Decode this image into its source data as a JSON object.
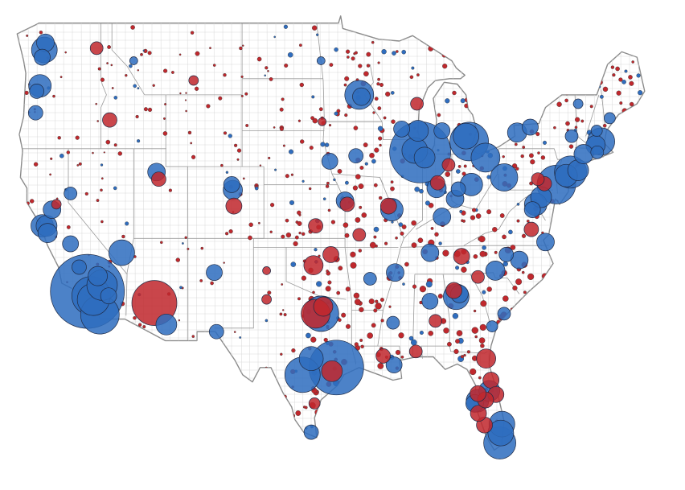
{
  "colors": {
    "party_a": "#2f6dbf",
    "party_b": "#c0282d",
    "outline": "#8a8a8a",
    "county_grid": "#d9d9d9"
  },
  "legend": null,
  "bubbles": [
    {
      "id": "la",
      "lon": -118.25,
      "lat": 34.05,
      "r": 46,
      "party": "a"
    },
    {
      "id": "la2",
      "lon": -117.9,
      "lat": 33.8,
      "r": 24,
      "party": "a"
    },
    {
      "id": "la3",
      "lon": -117.7,
      "lat": 33.6,
      "r": 20,
      "party": "a"
    },
    {
      "id": "sd",
      "lon": -117.1,
      "lat": 32.75,
      "r": 24,
      "party": "a"
    },
    {
      "id": "sb",
      "lon": -116.9,
      "lat": 34.4,
      "r": 19,
      "party": "a"
    },
    {
      "id": "sb2",
      "lon": -117.3,
      "lat": 34.9,
      "r": 12,
      "party": "a"
    },
    {
      "id": "riv",
      "lon": -116.3,
      "lat": 33.8,
      "r": 10,
      "party": "a"
    },
    {
      "id": "sf",
      "lon": -122.4,
      "lat": 37.7,
      "r": 14,
      "party": "a"
    },
    {
      "id": "alam",
      "lon": -122.0,
      "lat": 37.7,
      "r": 13,
      "party": "a"
    },
    {
      "id": "sc",
      "lon": -121.9,
      "lat": 37.3,
      "r": 12,
      "party": "a"
    },
    {
      "id": "sac",
      "lon": -121.5,
      "lat": 38.6,
      "r": 11,
      "party": "a"
    },
    {
      "id": "fres",
      "lon": -119.8,
      "lat": 36.7,
      "r": 10,
      "party": "a"
    },
    {
      "id": "kern",
      "lon": -119.0,
      "lat": 35.4,
      "r": 9,
      "party": "a"
    },
    {
      "id": "ca_r",
      "lon": -121.1,
      "lat": 38.9,
      "r": 6,
      "party": "b"
    },
    {
      "id": "sea",
      "lon": -122.2,
      "lat": 47.5,
      "r": 16,
      "party": "a"
    },
    {
      "id": "sea2",
      "lon": -122.1,
      "lat": 47.9,
      "r": 11,
      "party": "a"
    },
    {
      "id": "tac",
      "lon": -122.4,
      "lat": 47.1,
      "r": 10,
      "party": "a"
    },
    {
      "id": "spok",
      "lon": -117.4,
      "lat": 47.6,
      "r": 8,
      "party": "b"
    },
    {
      "id": "pdx",
      "lon": -122.6,
      "lat": 45.5,
      "r": 14,
      "party": "a"
    },
    {
      "id": "pdx2",
      "lon": -122.9,
      "lat": 45.2,
      "r": 9,
      "party": "a"
    },
    {
      "id": "eug",
      "lon": -123.0,
      "lat": 44.0,
      "r": 9,
      "party": "a"
    },
    {
      "id": "boise",
      "lon": -116.2,
      "lat": 43.6,
      "r": 9,
      "party": "b"
    },
    {
      "id": "phx",
      "lon": -112.1,
      "lat": 33.4,
      "r": 28,
      "party": "b"
    },
    {
      "id": "tuc",
      "lon": -111.0,
      "lat": 32.2,
      "r": 13,
      "party": "a"
    },
    {
      "id": "lv",
      "lon": -115.1,
      "lat": 36.2,
      "r": 16,
      "party": "a"
    },
    {
      "id": "reno",
      "lon": -119.8,
      "lat": 39.5,
      "r": 8,
      "party": "a"
    },
    {
      "id": "slc",
      "lon": -111.9,
      "lat": 40.7,
      "r": 11,
      "party": "a"
    },
    {
      "id": "utah",
      "lon": -111.7,
      "lat": 40.3,
      "r": 9,
      "party": "b"
    },
    {
      "id": "den",
      "lon": -104.9,
      "lat": 39.7,
      "r": 12,
      "party": "a"
    },
    {
      "id": "den2",
      "lon": -105.0,
      "lat": 40.0,
      "r": 10,
      "party": "a"
    },
    {
      "id": "cos",
      "lon": -104.8,
      "lat": 38.8,
      "r": 10,
      "party": "b"
    },
    {
      "id": "abq",
      "lon": -106.6,
      "lat": 35.1,
      "r": 10,
      "party": "a"
    },
    {
      "id": "elp",
      "lon": -106.4,
      "lat": 31.8,
      "r": 9,
      "party": "a"
    },
    {
      "id": "hou",
      "lon": -95.4,
      "lat": 29.8,
      "r": 34,
      "party": "a"
    },
    {
      "id": "hou2",
      "lon": -95.8,
      "lat": 29.6,
      "r": 13,
      "party": "b"
    },
    {
      "id": "dal",
      "lon": -96.8,
      "lat": 32.8,
      "r": 22,
      "party": "a"
    },
    {
      "id": "ftw",
      "lon": -97.3,
      "lat": 32.8,
      "r": 18,
      "party": "b"
    },
    {
      "id": "colin",
      "lon": -96.6,
      "lat": 33.2,
      "r": 12,
      "party": "b"
    },
    {
      "id": "aus",
      "lon": -97.7,
      "lat": 30.3,
      "r": 15,
      "party": "a"
    },
    {
      "id": "sa",
      "lon": -98.5,
      "lat": 29.4,
      "r": 22,
      "party": "a"
    },
    {
      "id": "rgv",
      "lon": -97.7,
      "lat": 26.2,
      "r": 9,
      "party": "a"
    },
    {
      "id": "okc",
      "lon": -97.5,
      "lat": 35.5,
      "r": 12,
      "party": "b"
    },
    {
      "id": "tul",
      "lon": -95.9,
      "lat": 36.1,
      "r": 10,
      "party": "b"
    },
    {
      "id": "kc",
      "lon": -94.6,
      "lat": 39.1,
      "r": 11,
      "party": "a"
    },
    {
      "id": "kc2",
      "lon": -94.4,
      "lat": 38.9,
      "r": 9,
      "party": "b"
    },
    {
      "id": "wich",
      "lon": -97.3,
      "lat": 37.7,
      "r": 9,
      "party": "b"
    },
    {
      "id": "oma",
      "lon": -96.0,
      "lat": 41.3,
      "r": 10,
      "party": "a"
    },
    {
      "id": "stl",
      "lon": -90.3,
      "lat": 38.6,
      "r": 14,
      "party": "a"
    },
    {
      "id": "stl2",
      "lon": -90.6,
      "lat": 38.8,
      "r": 10,
      "party": "b"
    },
    {
      "id": "msp",
      "lon": -93.3,
      "lat": 45.0,
      "r": 18,
      "party": "a"
    },
    {
      "id": "msp2",
      "lon": -93.1,
      "lat": 44.9,
      "r": 11,
      "party": "a"
    },
    {
      "id": "mke",
      "lon": -87.9,
      "lat": 43.0,
      "r": 13,
      "party": "a"
    },
    {
      "id": "mad",
      "lon": -89.4,
      "lat": 43.1,
      "r": 10,
      "party": "a"
    },
    {
      "id": "chi",
      "lon": -87.7,
      "lat": 41.8,
      "r": 38,
      "party": "a"
    },
    {
      "id": "chi2",
      "lon": -88.2,
      "lat": 41.9,
      "r": 16,
      "party": "a"
    },
    {
      "id": "chi3",
      "lon": -87.3,
      "lat": 41.5,
      "r": 13,
      "party": "a"
    },
    {
      "id": "det",
      "lon": -83.2,
      "lat": 42.4,
      "r": 24,
      "party": "a"
    },
    {
      "id": "det2",
      "lon": -83.5,
      "lat": 42.7,
      "r": 16,
      "party": "a"
    },
    {
      "id": "grr",
      "lon": -85.7,
      "lat": 43.0,
      "r": 10,
      "party": "a"
    },
    {
      "id": "cle",
      "lon": -81.7,
      "lat": 41.5,
      "r": 18,
      "party": "a"
    },
    {
      "id": "col",
      "lon": -83.0,
      "lat": 40.0,
      "r": 14,
      "party": "a"
    },
    {
      "id": "cin",
      "lon": -84.5,
      "lat": 39.2,
      "r": 11,
      "party": "a"
    },
    {
      "id": "ind",
      "lon": -86.2,
      "lat": 39.8,
      "r": 12,
      "party": "a"
    },
    {
      "id": "pit",
      "lon": -80.0,
      "lat": 40.4,
      "r": 17,
      "party": "a"
    },
    {
      "id": "phl",
      "lon": -75.2,
      "lat": 40.0,
      "r": 24,
      "party": "a"
    },
    {
      "id": "nyc",
      "lon": -73.9,
      "lat": 40.7,
      "r": 20,
      "party": "a"
    },
    {
      "id": "nj",
      "lon": -74.3,
      "lat": 40.5,
      "r": 14,
      "party": "a"
    },
    {
      "id": "li",
      "lon": -73.2,
      "lat": 40.8,
      "r": 13,
      "party": "a"
    },
    {
      "id": "bos",
      "lon": -71.1,
      "lat": 42.4,
      "r": 17,
      "party": "a"
    },
    {
      "id": "bos2",
      "lon": -71.6,
      "lat": 42.2,
      "r": 12,
      "party": "a"
    },
    {
      "id": "ct",
      "lon": -72.7,
      "lat": 41.7,
      "r": 12,
      "party": "a"
    },
    {
      "id": "buf",
      "lon": -78.8,
      "lat": 42.9,
      "r": 12,
      "party": "a"
    },
    {
      "id": "roc",
      "lon": -77.6,
      "lat": 43.2,
      "r": 10,
      "party": "a"
    },
    {
      "id": "alb",
      "lon": -73.8,
      "lat": 42.7,
      "r": 8,
      "party": "a"
    },
    {
      "id": "bal",
      "lon": -76.6,
      "lat": 39.3,
      "r": 13,
      "party": "a"
    },
    {
      "id": "dc",
      "lon": -77.1,
      "lat": 38.9,
      "r": 14,
      "party": "a"
    },
    {
      "id": "dc2",
      "lon": -77.4,
      "lat": 38.6,
      "r": 10,
      "party": "a"
    },
    {
      "id": "rich",
      "lon": -77.5,
      "lat": 37.5,
      "r": 9,
      "party": "b"
    },
    {
      "id": "nor",
      "lon": -76.2,
      "lat": 36.8,
      "r": 11,
      "party": "a"
    },
    {
      "id": "ral",
      "lon": -78.6,
      "lat": 35.8,
      "r": 11,
      "party": "a"
    },
    {
      "id": "clt",
      "lon": -80.8,
      "lat": 35.2,
      "r": 12,
      "party": "a"
    },
    {
      "id": "gsb",
      "lon": -79.8,
      "lat": 36.1,
      "r": 9,
      "party": "a"
    },
    {
      "id": "atl",
      "lon": -84.4,
      "lat": 33.75,
      "r": 16,
      "party": "a"
    },
    {
      "id": "atl2",
      "lon": -84.1,
      "lat": 33.9,
      "r": 11,
      "party": "a"
    },
    {
      "id": "atl3",
      "lon": -84.6,
      "lat": 34.1,
      "r": 10,
      "party": "b"
    },
    {
      "id": "nash",
      "lon": -86.8,
      "lat": 36.2,
      "r": 11,
      "party": "a"
    },
    {
      "id": "mem",
      "lon": -90.0,
      "lat": 35.1,
      "r": 11,
      "party": "a"
    },
    {
      "id": "knx",
      "lon": -83.9,
      "lat": 36.0,
      "r": 10,
      "party": "b"
    },
    {
      "id": "lou",
      "lon": -85.7,
      "lat": 38.2,
      "r": 11,
      "party": "a"
    },
    {
      "id": "bhm",
      "lon": -86.8,
      "lat": 33.5,
      "r": 10,
      "party": "a"
    },
    {
      "id": "no",
      "lon": -90.1,
      "lat": 29.95,
      "r": 10,
      "party": "a"
    },
    {
      "id": "br",
      "lon": -91.1,
      "lat": 30.45,
      "r": 9,
      "party": "b"
    },
    {
      "id": "jax",
      "lon": -81.65,
      "lat": 30.3,
      "r": 12,
      "party": "b"
    },
    {
      "id": "orl",
      "lon": -81.35,
      "lat": 28.5,
      "r": 13,
      "party": "a"
    },
    {
      "id": "tpa",
      "lon": -82.45,
      "lat": 27.95,
      "r": 14,
      "party": "a"
    },
    {
      "id": "stp",
      "lon": -82.7,
      "lat": 27.8,
      "r": 11,
      "party": "a"
    },
    {
      "id": "ftm",
      "lon": -81.8,
      "lat": 26.6,
      "r": 10,
      "party": "b"
    },
    {
      "id": "pb",
      "lon": -80.2,
      "lat": 26.65,
      "r": 16,
      "party": "a"
    },
    {
      "id": "brow",
      "lon": -80.3,
      "lat": 26.15,
      "r": 16,
      "party": "a"
    },
    {
      "id": "mia",
      "lon": -80.4,
      "lat": 25.6,
      "r": 20,
      "party": "a"
    },
    {
      "id": "volu",
      "lon": -81.2,
      "lat": 29.1,
      "r": 10,
      "party": "b"
    },
    {
      "id": "brev",
      "lon": -80.75,
      "lat": 28.3,
      "r": 10,
      "party": "b"
    },
    {
      "id": "sara",
      "lon": -82.35,
      "lat": 27.25,
      "r": 10,
      "party": "b"
    },
    {
      "id": "polk",
      "lon": -81.7,
      "lat": 28.0,
      "r": 10,
      "party": "b"
    },
    {
      "id": "pasco",
      "lon": -82.4,
      "lat": 28.35,
      "r": 10,
      "party": "b"
    },
    {
      "id": "mont_r",
      "lon": -86.3,
      "lat": 32.4,
      "r": 8,
      "party": "b"
    },
    {
      "id": "lr",
      "lon": -92.3,
      "lat": 34.75,
      "r": 8,
      "party": "a"
    },
    {
      "id": "jack",
      "lon": -90.2,
      "lat": 32.3,
      "r": 8,
      "party": "a"
    },
    {
      "id": "sprm",
      "lon": -93.3,
      "lat": 37.2,
      "r": 8,
      "party": "b"
    },
    {
      "id": "des",
      "lon": -93.6,
      "lat": 41.6,
      "r": 9,
      "party": "a"
    },
    {
      "id": "grb",
      "lon": -88.0,
      "lat": 44.5,
      "r": 8,
      "party": "b"
    },
    {
      "id": "fwa",
      "lon": -85.1,
      "lat": 41.1,
      "r": 8,
      "party": "b"
    },
    {
      "id": "ind_sub",
      "lon": -86.1,
      "lat": 40.1,
      "r": 9,
      "party": "b"
    },
    {
      "id": "dayton",
      "lon": -84.2,
      "lat": 39.75,
      "r": 9,
      "party": "a"
    },
    {
      "id": "lanc",
      "lon": -76.3,
      "lat": 40.05,
      "r": 9,
      "party": "b"
    },
    {
      "id": "harr",
      "lon": -76.9,
      "lat": 40.3,
      "r": 8,
      "party": "b"
    },
    {
      "id": "greenv",
      "lon": -82.4,
      "lat": 34.85,
      "r": 8,
      "party": "b"
    },
    {
      "id": "chas",
      "lon": -80.0,
      "lat": 32.8,
      "r": 8,
      "party": "a"
    },
    {
      "id": "sav",
      "lon": -81.1,
      "lat": 32.1,
      "r": 7,
      "party": "a"
    },
    {
      "id": "mobile",
      "lon": -88.1,
      "lat": 30.7,
      "r": 8,
      "party": "b"
    },
    {
      "id": "corp",
      "lon": -97.4,
      "lat": 27.8,
      "r": 7,
      "party": "b"
    },
    {
      "id": "lub",
      "lon": -101.8,
      "lat": 33.6,
      "r": 6,
      "party": "b"
    },
    {
      "id": "amar",
      "lon": -101.8,
      "lat": 35.2,
      "r": 5,
      "party": "b"
    },
    {
      "id": "bill",
      "lon": -108.5,
      "lat": 45.8,
      "r": 6,
      "party": "b"
    },
    {
      "id": "msla",
      "lon": -114.0,
      "lat": 46.9,
      "r": 5,
      "party": "a"
    },
    {
      "id": "fargo",
      "lon": -96.8,
      "lat": 46.9,
      "r": 5,
      "party": "a"
    },
    {
      "id": "sf_sd",
      "lon": -96.7,
      "lat": 43.5,
      "r": 5,
      "party": "b"
    },
    {
      "id": "me",
      "lon": -70.3,
      "lat": 43.7,
      "r": 7,
      "party": "a"
    },
    {
      "id": "nh",
      "lon": -71.5,
      "lat": 43.0,
      "r": 7,
      "party": "a"
    },
    {
      "id": "vt",
      "lon": -73.2,
      "lat": 44.5,
      "r": 6,
      "party": "a"
    },
    {
      "id": "ri",
      "lon": -71.45,
      "lat": 41.8,
      "r": 8,
      "party": "a"
    }
  ]
}
